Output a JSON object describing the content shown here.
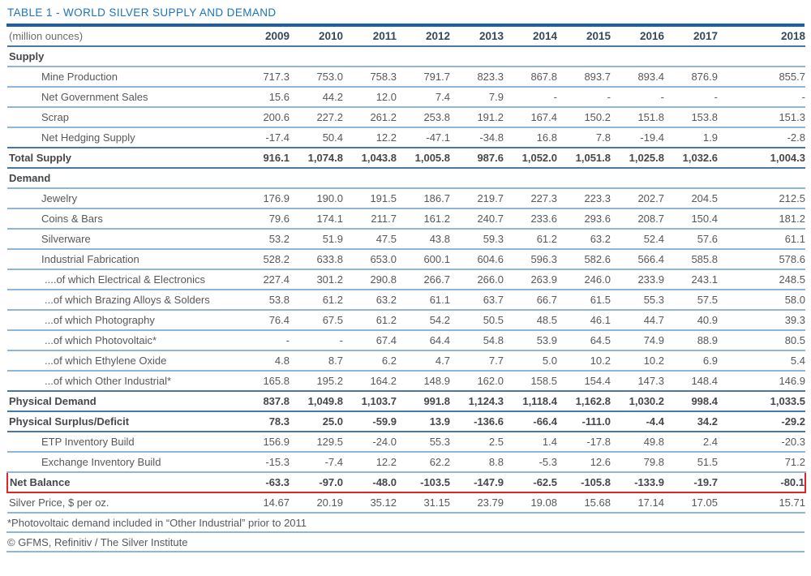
{
  "title": "TABLE 1 - WORLD SILVER SUPPLY AND DEMAND",
  "colors": {
    "title_blue": "#1b74bc",
    "accent_bar": "#1d5fa7",
    "line_light": "#8fb6da",
    "line_strong": "#4a78a6",
    "net_balance_box": "#e32426",
    "body_text": "#57585c",
    "year_header_text": "#37485a"
  },
  "table": {
    "unit_label": "(million ounces)",
    "years": [
      "2009",
      "2010",
      "2011",
      "2012",
      "2013",
      "2014",
      "2015",
      "2016",
      "2017",
      "2018"
    ],
    "rows": [
      {
        "name": "row-supply-section",
        "style": "section",
        "line": "light",
        "label": "Supply",
        "values": []
      },
      {
        "name": "row-mine-production",
        "style": "item",
        "line": "light",
        "label": "Mine Production",
        "values": [
          "717.3",
          "753.0",
          "758.3",
          "791.7",
          "823.3",
          "867.8",
          "893.7",
          "893.4",
          "876.9",
          "855.7"
        ]
      },
      {
        "name": "row-net-government-sales",
        "style": "item",
        "line": "light",
        "label": "Net Government Sales",
        "values": [
          "15.6",
          "44.2",
          "12.0",
          "7.4",
          "7.9",
          "-",
          "-",
          "-",
          "-",
          "-"
        ]
      },
      {
        "name": "row-scrap",
        "style": "item",
        "line": "light",
        "label": "Scrap",
        "values": [
          "200.6",
          "227.2",
          "261.2",
          "253.8",
          "191.2",
          "167.4",
          "150.2",
          "151.8",
          "153.8",
          "151.3"
        ]
      },
      {
        "name": "row-net-hedging-supply",
        "style": "item",
        "line": "strong",
        "label": "Net Hedging Supply",
        "values": [
          "-17.4",
          "50.4",
          "12.2",
          "-47.1",
          "-34.8",
          "16.8",
          "7.8",
          "-19.4",
          "1.9",
          "-2.8"
        ]
      },
      {
        "name": "row-total-supply",
        "style": "total",
        "line": "strong",
        "label": "Total Supply",
        "values": [
          "916.1",
          "1,074.8",
          "1,043.8",
          "1,005.8",
          "987.6",
          "1,052.0",
          "1,051.8",
          "1,025.8",
          "1,032.6",
          "1,004.3"
        ]
      },
      {
        "name": "row-demand-section",
        "style": "section",
        "line": "light",
        "label": "Demand",
        "values": []
      },
      {
        "name": "row-jewelry",
        "style": "item",
        "line": "light",
        "label": "Jewelry",
        "values": [
          "176.9",
          "190.0",
          "191.5",
          "186.7",
          "219.7",
          "227.3",
          "223.3",
          "202.7",
          "204.5",
          "212.5"
        ]
      },
      {
        "name": "row-coins-bars",
        "style": "item",
        "line": "light",
        "label": "Coins & Bars",
        "values": [
          "79.6",
          "174.1",
          "211.7",
          "161.2",
          "240.7",
          "233.6",
          "293.6",
          "208.7",
          "150.4",
          "181.2"
        ]
      },
      {
        "name": "row-silverware",
        "style": "item",
        "line": "light",
        "label": "Silverware",
        "values": [
          "53.2",
          "51.9",
          "47.5",
          "43.8",
          "59.3",
          "61.2",
          "63.2",
          "52.4",
          "57.6",
          "61.1"
        ]
      },
      {
        "name": "row-industrial-fabrication",
        "style": "item",
        "line": "light",
        "label": "Industrial Fabrication",
        "values": [
          "528.2",
          "633.8",
          "653.0",
          "600.1",
          "604.6",
          "596.3",
          "582.6",
          "566.4",
          "585.8",
          "578.6"
        ]
      },
      {
        "name": "row-of-which-electrical-electronics",
        "style": "subitem",
        "line": "light",
        "label": "....of which Electrical & Electronics",
        "values": [
          "227.4",
          "301.2",
          "290.8",
          "266.7",
          "266.0",
          "263.9",
          "246.0",
          "233.9",
          "243.1",
          "248.5"
        ]
      },
      {
        "name": "row-of-which-brazing-alloys-solders",
        "style": "subitem",
        "line": "light",
        "label": "...of which Brazing Alloys & Solders",
        "values": [
          "53.8",
          "61.2",
          "63.2",
          "61.1",
          "63.7",
          "66.7",
          "61.5",
          "55.3",
          "57.5",
          "58.0"
        ]
      },
      {
        "name": "row-of-which-photography",
        "style": "subitem",
        "line": "light",
        "label": "...of which Photography",
        "values": [
          "76.4",
          "67.5",
          "61.2",
          "54.2",
          "50.5",
          "48.5",
          "46.1",
          "44.7",
          "40.9",
          "39.3"
        ]
      },
      {
        "name": "row-of-which-photovoltaic",
        "style": "subitem",
        "line": "light",
        "label": "...of which Photovoltaic*",
        "values": [
          "-",
          "-",
          "67.4",
          "64.4",
          "54.8",
          "53.9",
          "64.5",
          "74.9",
          "88.9",
          "80.5"
        ]
      },
      {
        "name": "row-of-which-ethylene-oxide",
        "style": "subitem",
        "line": "light",
        "label": "...of which Ethylene Oxide",
        "values": [
          "4.8",
          "8.7",
          "6.2",
          "4.7",
          "7.7",
          "5.0",
          "10.2",
          "10.2",
          "6.9",
          "5.4"
        ]
      },
      {
        "name": "row-of-which-other-industrial",
        "style": "subitem",
        "line": "strong",
        "label": "...of which Other Industrial*",
        "values": [
          "165.8",
          "195.2",
          "164.2",
          "148.9",
          "162.0",
          "158.5",
          "154.4",
          "147.3",
          "148.4",
          "146.9"
        ]
      },
      {
        "name": "row-physical-demand",
        "style": "total",
        "line": "strong",
        "label": "Physical Demand",
        "values": [
          "837.8",
          "1,049.8",
          "1,103.7",
          "991.8",
          "1,124.3",
          "1,118.4",
          "1,162.8",
          "1,030.2",
          "998.4",
          "1,033.5"
        ]
      },
      {
        "name": "row-physical-surplus-deficit",
        "style": "total",
        "line": "strong",
        "label": "Physical Surplus/Deficit",
        "values": [
          "78.3",
          "25.0",
          "-59.9",
          "13.9",
          "-136.6",
          "-66.4",
          "-111.0",
          "-4.4",
          "34.2",
          "-29.2"
        ]
      },
      {
        "name": "row-etp-inventory-build",
        "style": "item",
        "line": "light",
        "label": "ETP Inventory Build",
        "values": [
          "156.9",
          "129.5",
          "-24.0",
          "55.3",
          "2.5",
          "1.4",
          "-17.8",
          "49.8",
          "2.4",
          "-20.3"
        ]
      },
      {
        "name": "row-exchange-inventory-build",
        "style": "item",
        "line": "light",
        "label": "Exchange Inventory Build",
        "values": [
          "-15.3",
          "-7.4",
          "12.2",
          "62.2",
          "8.8",
          "-5.3",
          "12.6",
          "79.8",
          "51.5",
          "71.2"
        ]
      },
      {
        "name": "row-net-balance",
        "style": "netbalance",
        "line": "red",
        "label": "Net Balance",
        "values": [
          "-63.3",
          "-97.0",
          "-48.0",
          "-103.5",
          "-147.9",
          "-62.5",
          "-105.8",
          "-133.9",
          "-19.7",
          "-80.1"
        ]
      },
      {
        "name": "row-silver-price",
        "style": "plain",
        "line": "light",
        "label": "Silver Price, $ per oz.",
        "values": [
          "14.67",
          "20.19",
          "35.12",
          "31.15",
          "23.79",
          "19.08",
          "15.68",
          "17.14",
          "17.05",
          "15.71"
        ]
      }
    ]
  },
  "footnotes": [
    "*Photovoltaic demand included in “Other Industrial” prior to 2011",
    "© GFMS, Refinitiv / The Silver Institute"
  ]
}
